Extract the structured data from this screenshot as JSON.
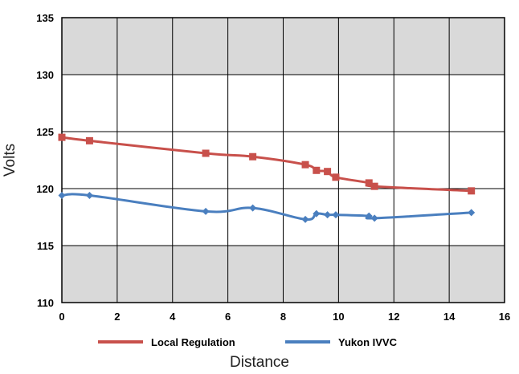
{
  "chart_data": {
    "type": "line",
    "title": "",
    "xlabel": "Distance",
    "ylabel": "Volts",
    "xlim": [
      0,
      16
    ],
    "ylim": [
      110,
      135
    ],
    "xticks": [
      0,
      2,
      4,
      6,
      8,
      10,
      12,
      14,
      16
    ],
    "yticks": [
      110,
      115,
      120,
      125,
      130,
      135
    ],
    "shaded_bands": [
      [
        110,
        115
      ],
      [
        130,
        135
      ]
    ],
    "grid": true,
    "legend_position": "bottom",
    "series": [
      {
        "name": "Local Regulation",
        "color": "#c8504b",
        "marker": "square",
        "x": [
          0,
          1,
          5.2,
          6.9,
          8.8,
          9.2,
          9.6,
          9.9,
          11.1,
          11.3,
          14.8
        ],
        "y": [
          124.5,
          124.2,
          123.1,
          122.8,
          122.1,
          121.6,
          121.5,
          121.0,
          120.5,
          120.2,
          119.8
        ]
      },
      {
        "name": "Yukon IVVC",
        "color": "#4a7fbf",
        "marker": "diamond",
        "x": [
          0,
          1,
          5.2,
          6.9,
          8.8,
          9.2,
          9.6,
          9.9,
          11.1,
          11.3,
          14.8
        ],
        "y": [
          119.4,
          119.4,
          118.0,
          118.3,
          117.3,
          117.8,
          117.7,
          117.7,
          117.6,
          117.4,
          117.9
        ]
      }
    ]
  }
}
